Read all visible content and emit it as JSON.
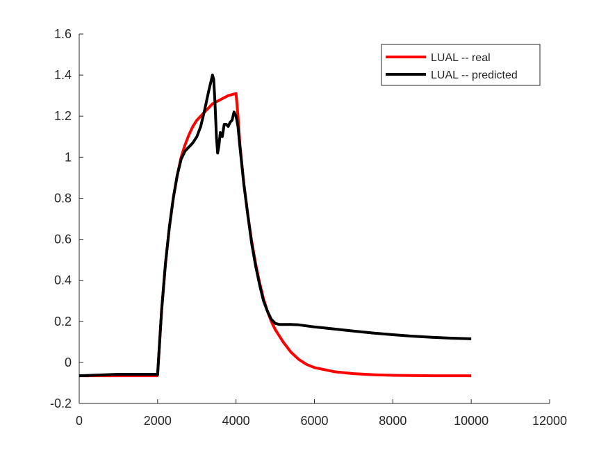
{
  "chart_data": {
    "type": "line",
    "title": "",
    "xlabel": "",
    "ylabel": "",
    "xlim": [
      0,
      12000
    ],
    "ylim": [
      -0.2,
      1.6
    ],
    "x_ticks": [
      0,
      2000,
      4000,
      6000,
      8000,
      10000,
      12000
    ],
    "y_ticks": [
      -0.2,
      0,
      0.2,
      0.4,
      0.6,
      0.8,
      1,
      1.2,
      1.4,
      1.6
    ],
    "x_tick_labels": [
      "0",
      "2000",
      "4000",
      "6000",
      "8000",
      "10000",
      "12000"
    ],
    "y_tick_labels": [
      "-0.2",
      "0",
      "0.2",
      "0.4",
      "0.6",
      "0.8",
      "1",
      "1.2",
      "1.4",
      "1.6"
    ],
    "grid": false,
    "legend_position": "top-right",
    "series": [
      {
        "name": "LUAL -- real",
        "color": "#ff0000",
        "x": [
          0,
          1990,
          2000,
          2100,
          2200,
          2300,
          2400,
          2500,
          2600,
          2700,
          2800,
          2900,
          3000,
          3100,
          3200,
          3300,
          3400,
          3500,
          3600,
          3700,
          3800,
          3900,
          4000,
          4050,
          4100,
          4200,
          4300,
          4400,
          4500,
          4600,
          4700,
          4800,
          4900,
          5000,
          5200,
          5400,
          5600,
          5800,
          6000,
          6500,
          7000,
          7500,
          8000,
          9000,
          10000
        ],
        "y": [
          -0.065,
          -0.065,
          -0.06,
          0.25,
          0.48,
          0.66,
          0.8,
          0.91,
          1.0,
          1.06,
          1.11,
          1.15,
          1.18,
          1.2,
          1.22,
          1.24,
          1.26,
          1.27,
          1.28,
          1.29,
          1.3,
          1.305,
          1.31,
          1.2,
          1.06,
          0.87,
          0.72,
          0.59,
          0.48,
          0.39,
          0.31,
          0.25,
          0.2,
          0.16,
          0.1,
          0.05,
          0.015,
          -0.01,
          -0.025,
          -0.045,
          -0.055,
          -0.06,
          -0.063,
          -0.065,
          -0.065
        ]
      },
      {
        "name": "LUAL -- predicted",
        "color": "#000000",
        "x": [
          0,
          1000,
          1990,
          2000,
          2100,
          2200,
          2300,
          2400,
          2500,
          2600,
          2700,
          2800,
          2900,
          3000,
          3100,
          3200,
          3300,
          3350,
          3400,
          3430,
          3460,
          3500,
          3530,
          3560,
          3600,
          3650,
          3700,
          3750,
          3800,
          3850,
          3900,
          3950,
          4000,
          4050,
          4100,
          4200,
          4300,
          4400,
          4500,
          4600,
          4700,
          4800,
          4900,
          5000,
          5100,
          5200,
          5400,
          5600,
          5800,
          6000,
          6500,
          7000,
          7500,
          8000,
          8500,
          9000,
          9500,
          10000
        ],
        "y": [
          -0.065,
          -0.058,
          -0.058,
          -0.06,
          0.25,
          0.48,
          0.66,
          0.8,
          0.91,
          0.99,
          1.03,
          1.05,
          1.07,
          1.1,
          1.15,
          1.23,
          1.32,
          1.36,
          1.4,
          1.38,
          1.28,
          1.1,
          1.02,
          1.05,
          1.12,
          1.1,
          1.16,
          1.16,
          1.15,
          1.17,
          1.18,
          1.22,
          1.2,
          1.15,
          1.05,
          0.87,
          0.72,
          0.58,
          0.47,
          0.38,
          0.3,
          0.25,
          0.21,
          0.19,
          0.185,
          0.185,
          0.185,
          0.183,
          0.178,
          0.173,
          0.163,
          0.153,
          0.143,
          0.135,
          0.128,
          0.122,
          0.118,
          0.115
        ]
      }
    ]
  }
}
